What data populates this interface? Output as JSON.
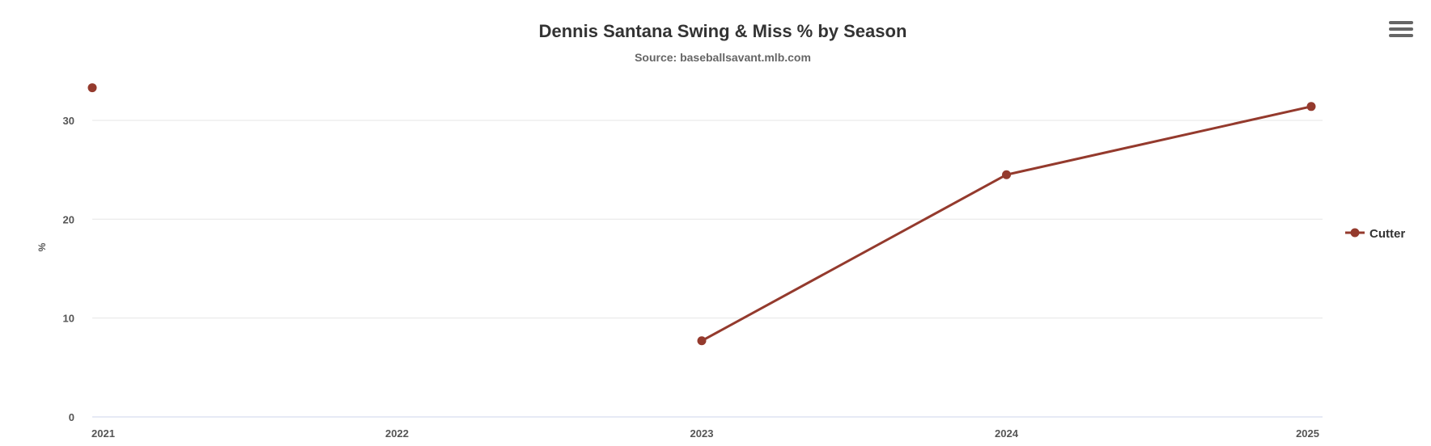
{
  "chart_data": {
    "type": "line",
    "title": "Dennis Santana Swing & Miss % by Season",
    "subtitle": "Source: baseballsavant.mlb.com",
    "ylabel": "%",
    "xlabel": "",
    "x": [
      "2021",
      "2022",
      "2023",
      "2024",
      "2025"
    ],
    "ylim": [
      0,
      34
    ],
    "yticks": [
      0,
      10,
      20,
      30
    ],
    "grid": true,
    "legend_position": "right",
    "series": [
      {
        "name": "Cutter",
        "color": "#943a2d",
        "values": [
          33.3,
          null,
          7.7,
          24.5,
          31.4
        ]
      }
    ]
  },
  "menu": {
    "icon": "hamburger-menu-icon"
  }
}
